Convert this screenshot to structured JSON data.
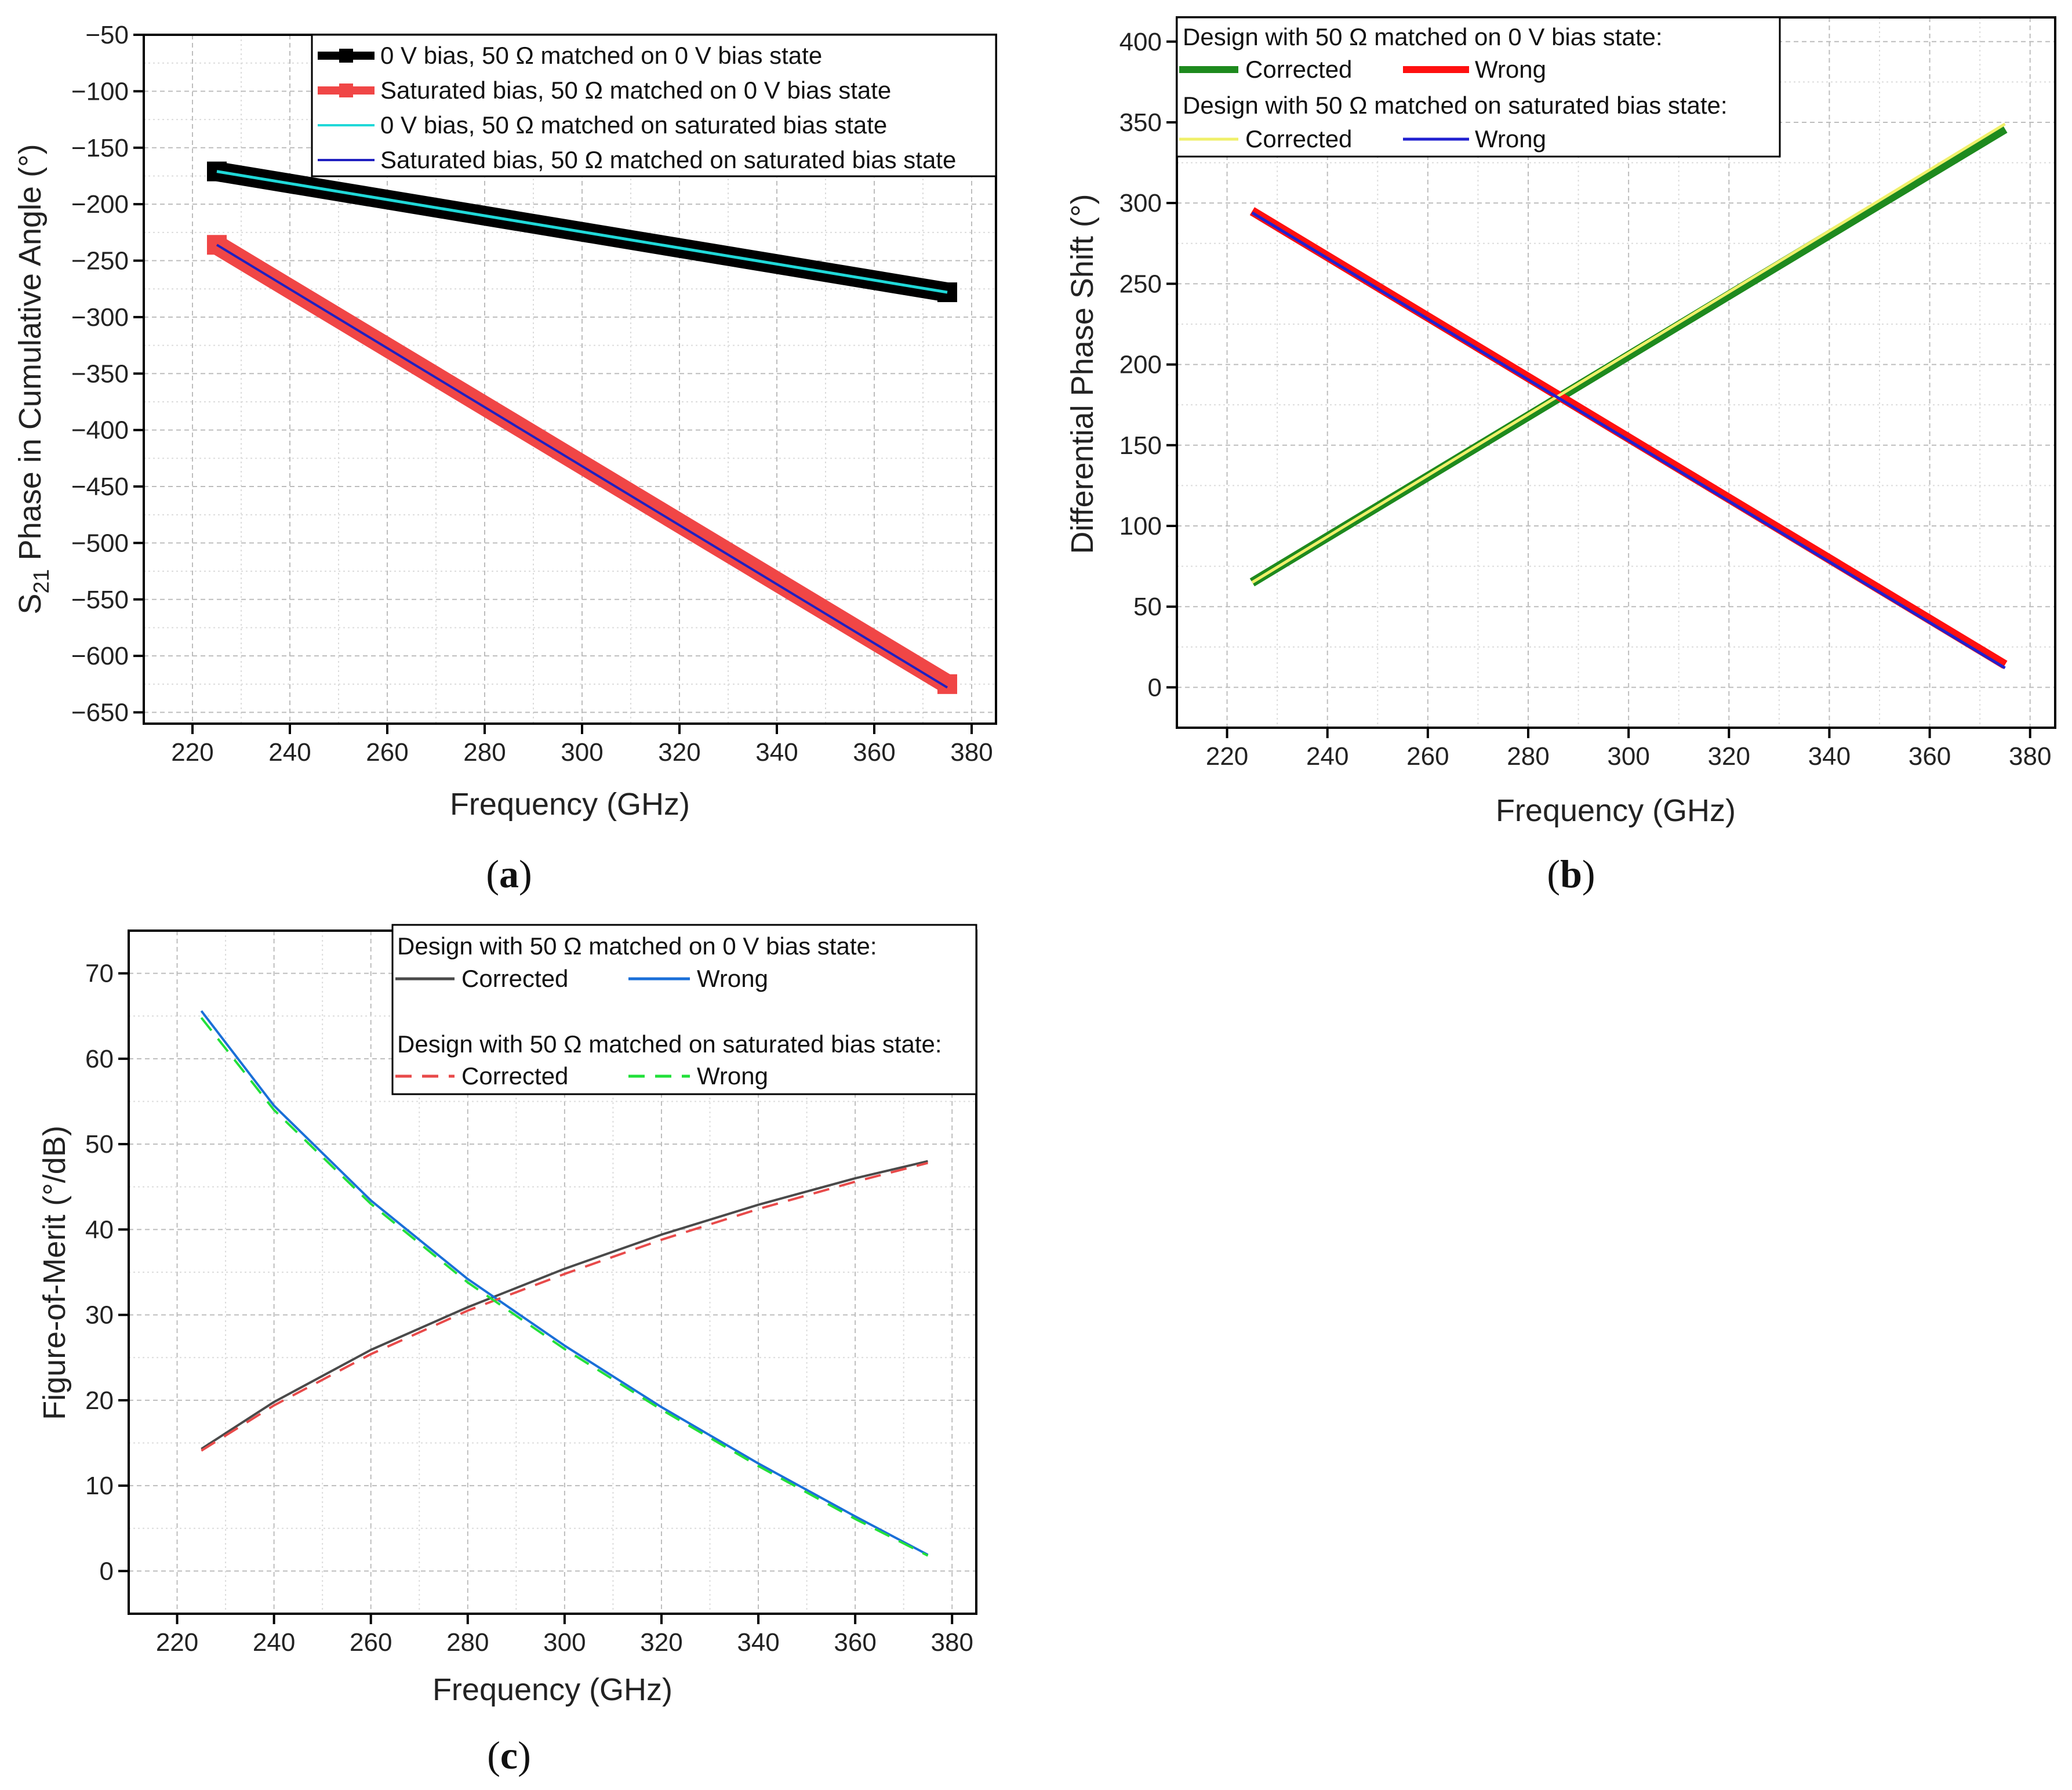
{
  "chart_data": [
    {
      "id": "a",
      "type": "line",
      "caption": "a",
      "xlabel": "Frequency (GHz)",
      "ylabel_main": "S",
      "ylabel_sub": "21",
      "ylabel_rest": " Phase in Cumulative Angle (°)",
      "xlim": [
        210,
        385
      ],
      "ylim": [
        -660,
        -50
      ],
      "xticks": [
        220,
        240,
        260,
        280,
        300,
        320,
        340,
        360,
        380
      ],
      "yticks": [
        -50,
        -100,
        -150,
        -200,
        -250,
        -300,
        -350,
        -400,
        -450,
        -500,
        -550,
        -600,
        -650
      ],
      "legend": {
        "position": "top-right",
        "entries": [
          {
            "label": "0 V bias, 50 Ω matched on 0 V bias state"
          },
          {
            "label": "Saturated bias, 50 Ω matched on 0 V bias state"
          },
          {
            "label": "0 V bias, 50 Ω matched on saturated bias state"
          },
          {
            "label": "Saturated bias, 50 Ω matched on saturated bias state"
          }
        ]
      },
      "series": [
        {
          "name": "0 V bias, 50 Ω matched on 0 V bias state",
          "color": "#000000",
          "x": [
            225,
            375
          ],
          "y": [
            -171,
            -278
          ]
        },
        {
          "name": "Saturated bias, 50 Ω matched on 0 V bias state",
          "color": "#f04646",
          "x": [
            225,
            375
          ],
          "y": [
            -236,
            -625
          ]
        },
        {
          "name": "0 V bias, 50 Ω matched on saturated bias state",
          "color": "#20d8d8",
          "x": [
            225,
            375
          ],
          "y": [
            -171,
            -278
          ]
        },
        {
          "name": "Saturated bias, 50 Ω matched on saturated bias state",
          "color": "#2020c0",
          "x": [
            225,
            375
          ],
          "y": [
            -236,
            -628
          ]
        }
      ]
    },
    {
      "id": "b",
      "type": "line",
      "caption": "b",
      "xlabel": "Frequency (GHz)",
      "ylabel": "Differential Phase Shift  (°)",
      "xlim": [
        210,
        385
      ],
      "ylim": [
        -25,
        415
      ],
      "xticks": [
        220,
        240,
        260,
        280,
        300,
        320,
        340,
        360,
        380
      ],
      "yticks": [
        0,
        50,
        100,
        150,
        200,
        250,
        300,
        350,
        400
      ],
      "legend": {
        "position": "top-left",
        "group1_title": "Design with 50 Ω matched on 0 V bias state:",
        "group2_title": "Design with 50 Ω matched on saturated bias state:",
        "entries": [
          {
            "label": "Corrected"
          },
          {
            "label": "Wrong"
          },
          {
            "label": "Corrected"
          },
          {
            "label": "Wrong"
          }
        ]
      },
      "series": [
        {
          "name": "Corrected (0 V bias matched)",
          "color": "#1e8a1e",
          "x": [
            225,
            375
          ],
          "y": [
            65,
            346
          ]
        },
        {
          "name": "Wrong (0 V bias matched)",
          "color": "#ff1010",
          "x": [
            225,
            375
          ],
          "y": [
            295,
            14
          ]
        },
        {
          "name": "Corrected (saturated bias matched)",
          "color": "#f0f06a",
          "x": [
            225,
            375
          ],
          "y": [
            65,
            349
          ]
        },
        {
          "name": "Wrong (saturated bias matched)",
          "color": "#2020d0",
          "x": [
            225,
            375
          ],
          "y": [
            294,
            12
          ]
        }
      ]
    },
    {
      "id": "c",
      "type": "line",
      "caption": "c",
      "xlabel": "Frequency (GHz)",
      "ylabel": "Figure-of-Merit (°/dB)",
      "xlim": [
        210,
        385
      ],
      "ylim": [
        -5,
        75
      ],
      "xticks": [
        220,
        240,
        260,
        280,
        300,
        320,
        340,
        360,
        380
      ],
      "yticks": [
        0,
        10,
        20,
        30,
        40,
        50,
        60,
        70
      ],
      "legend": {
        "position": "top-right",
        "group1_title": "Design with 50 Ω matched on 0 V bias state:",
        "group2_title": "Design with 50 Ω matched on saturated bias state:",
        "entries": [
          {
            "label": "Corrected"
          },
          {
            "label": "Wrong"
          },
          {
            "label": "Corrected"
          },
          {
            "label": "Wrong"
          }
        ]
      },
      "series": [
        {
          "name": "Corrected (0 V bias matched)",
          "color": "#4a4a4a",
          "dashed": false,
          "x": [
            225,
            240,
            260,
            280,
            300,
            320,
            340,
            360,
            375
          ],
          "y": [
            14.3,
            19.8,
            25.9,
            30.9,
            35.4,
            39.4,
            42.9,
            46.0,
            48.0
          ]
        },
        {
          "name": "Wrong (0 V bias matched)",
          "color": "#1a6fd8",
          "dashed": false,
          "x": [
            225,
            240,
            260,
            280,
            300,
            320,
            340,
            360,
            375
          ],
          "y": [
            65.6,
            54.5,
            43.4,
            34.2,
            26.4,
            19.2,
            12.6,
            6.4,
            1.9
          ]
        },
        {
          "name": "Corrected (saturated bias matched)",
          "color": "#e84a4a",
          "dashed": true,
          "x": [
            225,
            240,
            260,
            280,
            300,
            320,
            340,
            360,
            375
          ],
          "y": [
            14.1,
            19.4,
            25.4,
            30.5,
            34.8,
            38.8,
            42.4,
            45.6,
            47.8
          ]
        },
        {
          "name": "Wrong (saturated bias matched)",
          "color": "#22e03a",
          "dashed": true,
          "x": [
            225,
            240,
            260,
            280,
            300,
            320,
            340,
            360,
            375
          ],
          "y": [
            64.8,
            54.0,
            43.0,
            33.8,
            26.0,
            18.9,
            12.3,
            6.1,
            1.8
          ]
        }
      ]
    }
  ]
}
